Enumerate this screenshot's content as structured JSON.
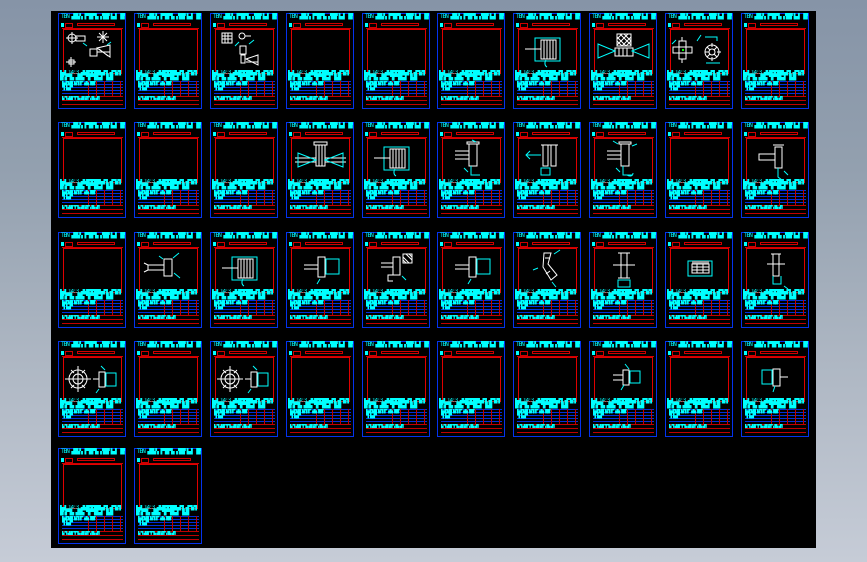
{
  "app": {
    "description_label": ""
  },
  "colors": {
    "backdrop_top": "#8694a7",
    "backdrop_bottom": "#c6ccd7",
    "canvas_bg": "#000000",
    "sheet_border": "#0433ee",
    "inner_border": "#e00000",
    "table_blue": "#0030dd",
    "table_red": "#c00000",
    "annotation_cyan": "#00ffff",
    "part_white": "#ffffff"
  },
  "sheet_text": {
    "top": "TBN ▟█▙▚ ▛▜█▀▙ ▞██▘▙▟ ▐█▚▜ █▙",
    "mid": "▙▟ 14:3 ▟▙█▜▛██▙▟▜ ▟▀▙▜ █▚▛▜▙ ▟█▙ ▜▛▀█▙▟ ▐▙█",
    "table": "▙▟▜▟█ ▙▜▞▛ ▟▙ ██▘▜ ▙▟▀",
    "bottom": "▙▞▜ ▟▙█ ▀▛▜▙ ▟█ ▙▜▛ ▞█▙ ▟▜"
  },
  "grid": {
    "rows": 5,
    "cols": 10,
    "sheet_count": 42
  },
  "frames": [
    {
      "row": 0,
      "col": 0,
      "part": "scatter"
    },
    {
      "row": 0,
      "col": 1,
      "part": "none"
    },
    {
      "row": 0,
      "col": 2,
      "part": "scatter2"
    },
    {
      "row": 0,
      "col": 3,
      "part": "none"
    },
    {
      "row": 0,
      "col": 4,
      "part": "none"
    },
    {
      "row": 0,
      "col": 5,
      "part": "none"
    },
    {
      "row": 0,
      "col": 6,
      "part": "coupling"
    },
    {
      "row": 0,
      "col": 7,
      "part": "hatchcone"
    },
    {
      "row": 0,
      "col": 8,
      "part": "flangepair"
    },
    {
      "row": 0,
      "col": 9,
      "part": "none"
    },
    {
      "row": 1,
      "col": 0,
      "part": "none"
    },
    {
      "row": 1,
      "col": 1,
      "part": "none"
    },
    {
      "row": 1,
      "col": 2,
      "part": "none"
    },
    {
      "row": 1,
      "col": 3,
      "part": "valve"
    },
    {
      "row": 1,
      "col": 4,
      "part": "coupling"
    },
    {
      "row": 1,
      "col": 5,
      "part": "bracket"
    },
    {
      "row": 1,
      "col": 6,
      "part": "pins"
    },
    {
      "row": 1,
      "col": 7,
      "part": "bracket2"
    },
    {
      "row": 1,
      "col": 8,
      "part": "none"
    },
    {
      "row": 1,
      "col": 9,
      "part": "tee"
    },
    {
      "row": 2,
      "col": 0,
      "part": "none"
    },
    {
      "row": 2,
      "col": 1,
      "part": "tee2"
    },
    {
      "row": 2,
      "col": 2,
      "part": "coupling"
    },
    {
      "row": 2,
      "col": 3,
      "part": "teebox"
    },
    {
      "row": 2,
      "col": 4,
      "part": "brackethatch"
    },
    {
      "row": 2,
      "col": 5,
      "part": "teebox"
    },
    {
      "row": 2,
      "col": 6,
      "part": "angle"
    },
    {
      "row": 2,
      "col": 7,
      "part": "shaft"
    },
    {
      "row": 2,
      "col": 8,
      "part": "barh"
    },
    {
      "row": 2,
      "col": 9,
      "part": "shaft2"
    },
    {
      "row": 3,
      "col": 0,
      "part": "target"
    },
    {
      "row": 3,
      "col": 1,
      "part": "none"
    },
    {
      "row": 3,
      "col": 2,
      "part": "target"
    },
    {
      "row": 3,
      "col": 3,
      "part": "none"
    },
    {
      "row": 3,
      "col": 4,
      "part": "none"
    },
    {
      "row": 3,
      "col": 5,
      "part": "none"
    },
    {
      "row": 3,
      "col": 6,
      "part": "none"
    },
    {
      "row": 3,
      "col": 7,
      "part": "plate"
    },
    {
      "row": 3,
      "col": 8,
      "part": "none"
    },
    {
      "row": 3,
      "col": 9,
      "part": "plate2"
    },
    {
      "row": 4,
      "col": 0,
      "part": "none"
    },
    {
      "row": 4,
      "col": 1,
      "part": "none"
    }
  ]
}
